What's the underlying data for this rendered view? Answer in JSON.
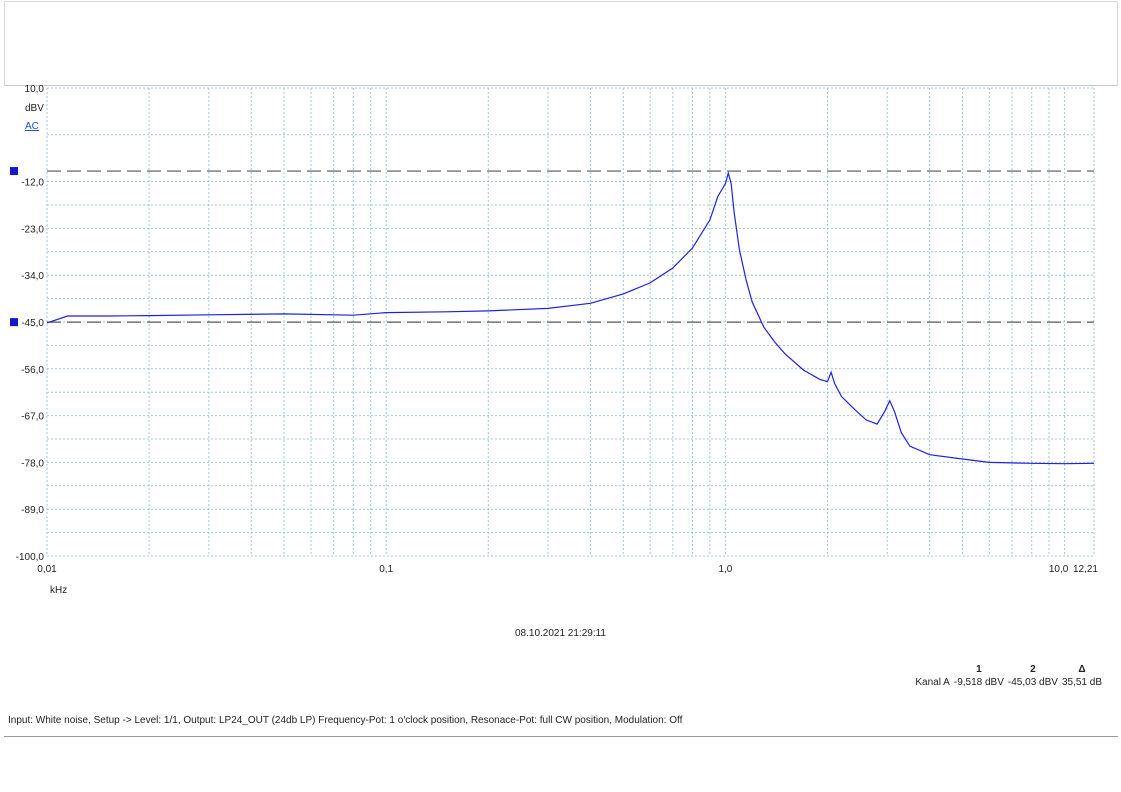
{
  "chart_data": {
    "type": "line",
    "xscale": "log",
    "xlim": [
      0.01,
      12.21
    ],
    "ylim": [
      -100.0,
      10.0
    ],
    "xunit": "kHz",
    "yunit": "dBV",
    "coupling": "AC",
    "grid": true,
    "yticks": [
      "10,0",
      "-12,0",
      "-23,0",
      "-34,0",
      "-45,0",
      "-56,0",
      "-67,0",
      "-78,0",
      "-89,0",
      "-100,0"
    ],
    "xticks": [
      {
        "value": 0.01,
        "label": "0,01"
      },
      {
        "value": 0.1,
        "label": "0,1"
      },
      {
        "value": 1.0,
        "label": "1,0"
      },
      {
        "value": 10.0,
        "label": "10,0"
      },
      {
        "value": 12.21,
        "label": "12,21"
      }
    ],
    "cursors": [
      {
        "name": "1",
        "y": -9.518
      },
      {
        "name": "2",
        "y": -45.03
      }
    ],
    "series": [
      {
        "color": "#1f22dd",
        "x": [
          0.01,
          0.0115,
          0.015,
          0.02,
          0.03,
          0.05,
          0.08,
          0.1,
          0.15,
          0.2,
          0.3,
          0.4,
          0.5,
          0.6,
          0.7,
          0.8,
          0.9,
          0.95,
          1.0,
          1.02,
          1.04,
          1.06,
          1.1,
          1.15,
          1.2,
          1.3,
          1.4,
          1.5,
          1.7,
          1.9,
          2.0,
          2.05,
          2.1,
          2.2,
          2.4,
          2.6,
          2.8,
          2.95,
          3.05,
          3.15,
          3.3,
          3.5,
          4.0,
          5.0,
          6.0,
          8.0,
          10.0,
          12.21
        ],
        "y": [
          -45.2,
          -43.6,
          -43.6,
          -43.5,
          -43.3,
          -43.1,
          -43.4,
          -42.8,
          -42.6,
          -42.4,
          -41.8,
          -40.6,
          -38.4,
          -35.8,
          -32.3,
          -27.6,
          -21.0,
          -15.5,
          -12.5,
          -10.0,
          -12.5,
          -19.0,
          -28.0,
          -35.0,
          -40.3,
          -46.3,
          -49.8,
          -52.5,
          -56.3,
          -58.5,
          -59.0,
          -56.8,
          -59.5,
          -62.5,
          -65.5,
          -68.0,
          -69.0,
          -66.0,
          -63.5,
          -66.0,
          -71.0,
          -74.2,
          -76.2,
          -77.2,
          -78.0,
          -78.2,
          -78.3,
          -78.2
        ]
      }
    ]
  },
  "timestamp": "08.10.2021 21:29:11",
  "readout": {
    "headers": [
      "1",
      "2",
      "Δ"
    ],
    "channel": "Kanal A",
    "values": [
      "-9,518 dBV",
      "-45,03 dBV",
      "35,51 dB"
    ]
  },
  "caption": "Input: White noise, Setup -> Level: 1/1, Output: LP24_OUT (24db LP)  Frequency-Pot: 1 o'clock position, Resonace-Pot: full CW position, Modulation: Off",
  "colors": {
    "grid": "#9fc7de",
    "cursor_line": "#555555",
    "cursor_marker": "#1418c8",
    "trace": "#1f22dd",
    "unit_link": "#1a4fd6"
  }
}
